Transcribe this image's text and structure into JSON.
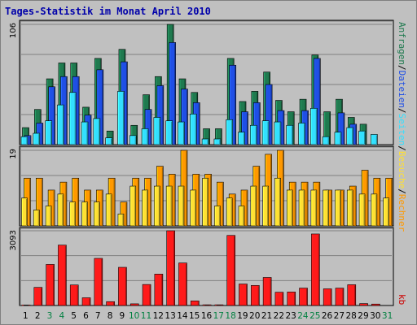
{
  "title": "Tages-Statistik im Monat April 2010",
  "colors": {
    "background": "#c0c0c0",
    "panel": "#c0c0c0",
    "gridline": "#808080",
    "title": "#0000aa",
    "weekday": "#000000",
    "weekend": "#008040",
    "anfragen": "#1f7a4f",
    "dateien": "#1f4fe6",
    "seiten": "#33e0ff",
    "besuche": "#ff9900",
    "rechner": "#ffe033",
    "kb": "#ff1a1a"
  },
  "right_labels": {
    "anfragen": "Anfragen",
    "sep1": "/",
    "dateien": "Dateien",
    "sep2": "/",
    "seiten": "Seiten",
    "sep3": "/",
    "besuche": "Besuche",
    "sep4": "/",
    "rechner": "Rechner",
    "kb": "kb"
  },
  "chart_data": [
    {
      "type": "bar",
      "panel": "hits",
      "ymax_label": "106",
      "ylim": [
        0,
        106
      ],
      "categories": [
        "1",
        "2",
        "3",
        "4",
        "5",
        "6",
        "7",
        "8",
        "9",
        "10",
        "11",
        "12",
        "13",
        "14",
        "15",
        "16",
        "17",
        "18",
        "19",
        "20",
        "21",
        "22",
        "23",
        "24",
        "25",
        "26",
        "27",
        "28",
        "29",
        "30",
        "31"
      ],
      "weekend": [
        3,
        4,
        10,
        11,
        17,
        18,
        24,
        25,
        31
      ],
      "series": [
        {
          "name": "Anfragen",
          "values": [
            15,
            31,
            58,
            72,
            72,
            33,
            76,
            12,
            84,
            17,
            44,
            60,
            106,
            58,
            46,
            14,
            14,
            76,
            38,
            47,
            64,
            39,
            29,
            40,
            79,
            29,
            40,
            24,
            18,
            0,
            0
          ]
        },
        {
          "name": "Dateien",
          "values": [
            8,
            19,
            51,
            60,
            60,
            26,
            66,
            0,
            73,
            0,
            31,
            52,
            90,
            49,
            37,
            0,
            0,
            70,
            29,
            37,
            53,
            30,
            0,
            30,
            76,
            0,
            28,
            18,
            0,
            0,
            0
          ]
        },
        {
          "name": "Seiten",
          "values": [
            7,
            10,
            21,
            35,
            46,
            20,
            23,
            6,
            47,
            8,
            14,
            24,
            21,
            20,
            27,
            5,
            5,
            22,
            11,
            17,
            21,
            20,
            17,
            19,
            32,
            7,
            11,
            15,
            12,
            9,
            0
          ]
        }
      ]
    },
    {
      "type": "bar",
      "panel": "visits",
      "ymax_label": "19",
      "ylim": [
        0,
        19
      ],
      "categories": [
        "1",
        "2",
        "3",
        "4",
        "5",
        "6",
        "7",
        "8",
        "9",
        "10",
        "11",
        "12",
        "13",
        "14",
        "15",
        "16",
        "17",
        "18",
        "19",
        "20",
        "21",
        "22",
        "23",
        "24",
        "25",
        "26",
        "27",
        "28",
        "29",
        "30",
        "31"
      ],
      "weekend": [
        3,
        4,
        10,
        11,
        17,
        18,
        24,
        25,
        31
      ],
      "series": [
        {
          "name": "Besuche",
          "values": [
            12,
            12,
            9,
            11,
            12,
            9,
            9,
            12,
            6,
            12,
            12,
            15,
            13,
            19,
            13,
            13,
            11,
            8,
            9,
            15,
            18,
            19,
            11,
            11,
            11,
            9,
            9,
            10,
            14,
            12,
            12
          ]
        },
        {
          "name": "Rechner",
          "values": [
            7,
            4,
            5,
            8,
            6,
            6,
            6,
            8,
            3,
            10,
            9,
            10,
            10,
            10,
            9,
            12,
            5,
            7,
            5,
            10,
            10,
            12,
            9,
            9,
            9,
            9,
            9,
            9,
            8,
            8,
            7
          ]
        }
      ]
    },
    {
      "type": "bar",
      "panel": "kb",
      "ymax_label": "3093",
      "ylim": [
        0,
        3093
      ],
      "categories": [
        "1",
        "2",
        "3",
        "4",
        "5",
        "6",
        "7",
        "8",
        "9",
        "10",
        "11",
        "12",
        "13",
        "14",
        "15",
        "16",
        "17",
        "18",
        "19",
        "20",
        "21",
        "22",
        "23",
        "24",
        "25",
        "26",
        "27",
        "28",
        "29",
        "30",
        "31"
      ],
      "weekend": [
        3,
        4,
        10,
        11,
        17,
        18,
        24,
        25,
        31
      ],
      "series": [
        {
          "name": "kb",
          "values": [
            20,
            750,
            1700,
            2500,
            850,
            320,
            1950,
            160,
            1580,
            70,
            870,
            1300,
            3093,
            1760,
            190,
            30,
            30,
            2900,
            890,
            830,
            1160,
            550,
            560,
            720,
            2960,
            690,
            720,
            860,
            80,
            60,
            0
          ]
        }
      ]
    }
  ]
}
